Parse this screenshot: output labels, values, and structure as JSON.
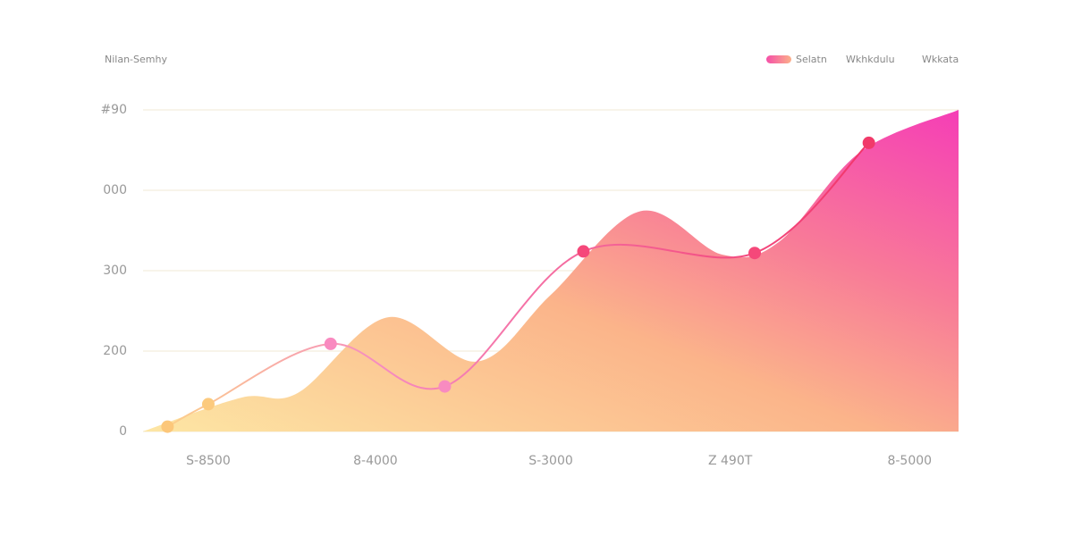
{
  "chart_data": {
    "type": "area-line",
    "title": "Nilan-Semhy",
    "legend": [
      "Selatn",
      "Wkhkdulu",
      "Wkkata"
    ],
    "xlim": [
      0,
      100
    ],
    "xticks": [
      {
        "value": 8,
        "label": "S-8500"
      },
      {
        "value": 28.5,
        "label": "8-4000"
      },
      {
        "value": 50,
        "label": "S-3000"
      },
      {
        "value": 72,
        "label": "Z 490T"
      },
      {
        "value": 94,
        "label": "8-5000"
      }
    ],
    "ylim": [
      0,
      400
    ],
    "yticks": [
      0,
      {
        "value": 100,
        "label": "200"
      },
      {
        "value": 200,
        "label": "300"
      },
      {
        "value": 300,
        "label": "000"
      },
      {
        "value": 400,
        "label": "#90"
      }
    ],
    "grid": true,
    "series": [
      {
        "kind": "area",
        "color": "#f25aa0",
        "x": [
          0,
          12,
          19,
          30,
          41,
          50,
          61,
          71,
          78,
          88,
          100
        ],
        "values": [
          0,
          42,
          48,
          142,
          87,
          170,
          274,
          220,
          236,
          348,
          400
        ]
      },
      {
        "kind": "line",
        "color": "#f0628f",
        "x": [
          3,
          8,
          23,
          37,
          54,
          75,
          89
        ],
        "values": [
          6,
          34,
          109,
          56,
          224,
          222,
          359
        ],
        "point_colors": [
          "#fcc77a",
          "#fcca7e",
          "#f98ac0",
          "#f88bc0",
          "#f5487a",
          "#f5487a",
          "#f13a6a"
        ]
      }
    ]
  }
}
